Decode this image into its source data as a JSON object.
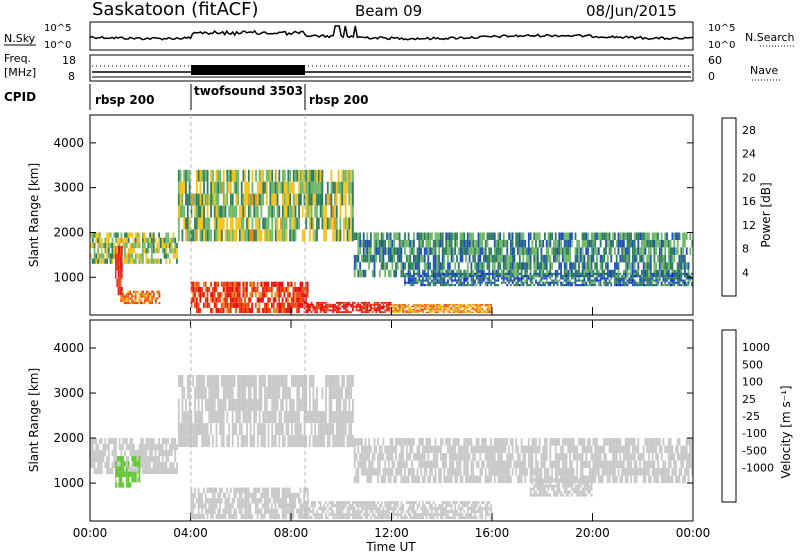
{
  "header": {
    "station": "Saskatoon (fitACF)",
    "beam": "Beam 09",
    "date": "08/Jun/2015"
  },
  "side_labels": {
    "nsky": "N.Sky",
    "nsearch": "N.Search",
    "freq_line1": "Freq.",
    "freq_line2": "[MHz]",
    "nave": "Nave",
    "cpid": "CPID"
  },
  "noise_panel": {
    "left_ticks": [
      "10^5",
      "10^0"
    ],
    "right_ticks": [
      "10^5",
      "10^0"
    ]
  },
  "freq_panel": {
    "left_ticks": [
      "18",
      "8"
    ],
    "right_ticks": [
      "60",
      "0"
    ]
  },
  "cpid_segments": [
    {
      "name": "rbsp 200",
      "start_hour": 0,
      "end_hour": 4
    },
    {
      "name": "twofsound 3503",
      "start_hour": 4,
      "end_hour": 8.5
    },
    {
      "name": "rbsp 200",
      "start_hour": 8.5,
      "end_hour": 24
    }
  ],
  "colors": {
    "power_scale": [
      "#0a1ee6",
      "#1f4fb8",
      "#2f7e5a",
      "#6fb86a",
      "#f5c21b",
      "#f08a12",
      "#e84a10",
      "#e81010"
    ],
    "velocity_scale": [
      "#e41414",
      "#f05a10",
      "#f59a18",
      "#f7c21e",
      "#c8c8c8",
      "#c8c8c8",
      "#64c832",
      "#2a8a3a",
      "#2a6e9a",
      "#1a3fa8"
    ]
  },
  "chart_data": [
    {
      "type": "heatmap",
      "name": "power",
      "xlabel": "",
      "ylabel": "Slant Range [km]",
      "x_range_hours": [
        0,
        24
      ],
      "y_range_km": [
        180,
        4600
      ],
      "y_ticks": [
        "1000",
        "2000",
        "3000",
        "4000"
      ],
      "colorbar": {
        "label": "Power [dB]",
        "ticks": [
          "4",
          "8",
          "12",
          "16",
          "20",
          "24",
          "28"
        ],
        "range": [
          0,
          30
        ]
      },
      "bands": [
        {
          "t0": 0,
          "t1": 3.5,
          "r0": 1300,
          "r1": 2000,
          "value": 14
        },
        {
          "t0": 1.0,
          "t1": 1.3,
          "r0": 600,
          "r1": 1700,
          "value": 28
        },
        {
          "t0": 1.2,
          "t1": 2.8,
          "r0": 400,
          "r1": 700,
          "value": 22
        },
        {
          "t0": 4.0,
          "t1": 8.7,
          "r0": 200,
          "r1": 900,
          "value": 26
        },
        {
          "t0": 8.5,
          "t1": 12.0,
          "r0": 200,
          "r1": 450,
          "value": 28
        },
        {
          "t0": 12.0,
          "t1": 16.0,
          "r0": 200,
          "r1": 400,
          "value": 20
        },
        {
          "t0": 3.5,
          "t1": 10.5,
          "r0": 1800,
          "r1": 3400,
          "value": 14
        },
        {
          "t0": 10.5,
          "t1": 24.0,
          "r0": 1000,
          "r1": 2000,
          "value": 10
        },
        {
          "t0": 12.5,
          "t1": 24.0,
          "r0": 800,
          "r1": 1100,
          "value": 8
        }
      ]
    },
    {
      "type": "heatmap",
      "name": "velocity",
      "xlabel": "Time UT",
      "ylabel": "Slant Range [km]",
      "x_range_hours": [
        0,
        24
      ],
      "y_range_km": [
        180,
        4600
      ],
      "x_ticks": [
        "00:00",
        "04:00",
        "08:00",
        "12:00",
        "16:00",
        "20:00",
        "00:00"
      ],
      "y_ticks": [
        "1000",
        "2000",
        "3000",
        "4000"
      ],
      "colorbar": {
        "label": "Velocity [m s⁻¹]",
        "ticks": [
          "1000",
          "500",
          "100",
          "25",
          "-25",
          "-100",
          "-500",
          "-1000"
        ],
        "range": [
          -1200,
          1200
        ]
      },
      "bands": [
        {
          "t0": 0,
          "t1": 3.5,
          "r0": 1200,
          "r1": 2000,
          "value": 0
        },
        {
          "t0": 1.0,
          "t1": 2.0,
          "r0": 900,
          "r1": 1600,
          "value": 300
        },
        {
          "t0": 3.5,
          "t1": 10.5,
          "r0": 1800,
          "r1": 3400,
          "value": 0
        },
        {
          "t0": 4.0,
          "t1": 8.7,
          "r0": 200,
          "r1": 900,
          "value": 80
        },
        {
          "t0": 8.5,
          "t1": 16.0,
          "r0": 200,
          "r1": 600,
          "value": -80
        },
        {
          "t0": 10.5,
          "t1": 24.0,
          "r0": 1000,
          "r1": 2000,
          "value": 0
        },
        {
          "t0": 17.5,
          "t1": 20.0,
          "r0": 700,
          "r1": 1100,
          "value": 80
        }
      ]
    }
  ]
}
